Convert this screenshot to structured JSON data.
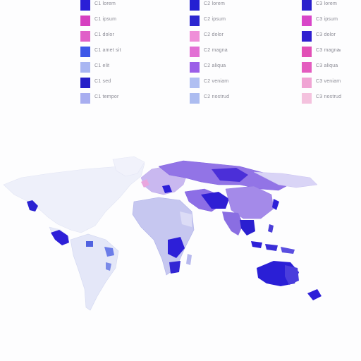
{
  "legends": [
    {
      "id": "left",
      "items": [
        {
          "color": "#2a1fd6",
          "label": "C1 lorem"
        },
        {
          "color": "#d63fc0",
          "label": "C1 ipsum"
        },
        {
          "color": "#e060c8",
          "label": "C1 dolor"
        },
        {
          "color": "#3d57e8",
          "label": "C1 amet sit"
        },
        {
          "color": "#a9b6f2",
          "label": "C1 elit"
        },
        {
          "color": "#2620c8",
          "label": "C1 sed"
        },
        {
          "color": "#a8aef0",
          "label": "C1 tempor"
        }
      ]
    },
    {
      "id": "mid",
      "items": [
        {
          "color": "#2420d2",
          "label": "C2 lorem"
        },
        {
          "color": "#2c26d0",
          "label": "C2 ipsum"
        },
        {
          "color": "#ef8fd8",
          "label": "C2 dolor"
        },
        {
          "color": "#e26fd4",
          "label": "C2 magna"
        },
        {
          "color": "#9b5ee8",
          "label": "C2 aliqua"
        },
        {
          "color": "#b0bff2",
          "label": "C2 veniam"
        },
        {
          "color": "#acbcf0",
          "label": "C2 nostrud"
        }
      ]
    },
    {
      "id": "right",
      "items": [
        {
          "color": "#2a20cc",
          "label": "C3 lorem"
        },
        {
          "color": "#d845c8",
          "label": "C3 ipsum"
        },
        {
          "color": "#2f1fd0",
          "label": "C3 dolor"
        },
        {
          "color": "#e24fb6",
          "label": "C3 magna"
        },
        {
          "color": "#e45cbf",
          "label": "C3 aliqua"
        },
        {
          "color": "#f0a4d4",
          "label": "C3 veniam"
        },
        {
          "color": "#f4c2de",
          "label": "C3 nostrud"
        }
      ]
    }
  ],
  "map": {
    "base_land_color": "#eceff9",
    "light_region_color": "#c9cdf1",
    "medium_region_color": "#8e7ae6",
    "dark_region_color": "#2d1fd8",
    "pink_region_color": "#e9a6de",
    "ocean_color": "#fdfdfe"
  }
}
